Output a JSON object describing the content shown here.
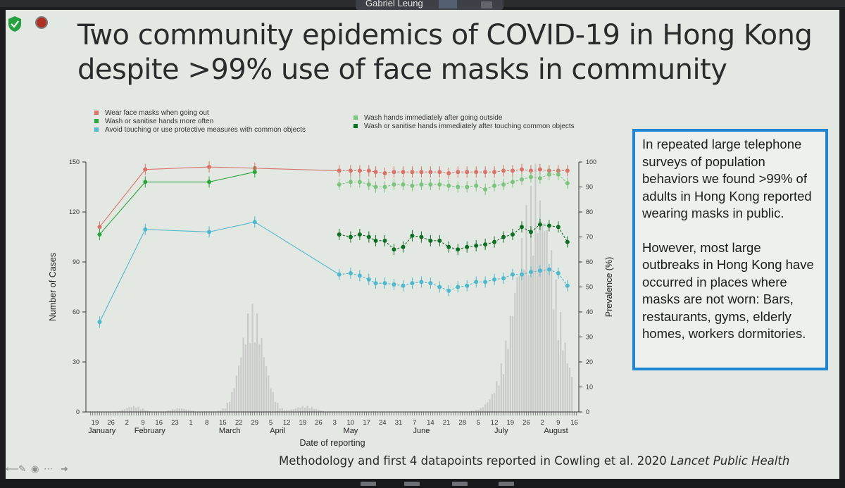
{
  "app": {
    "presenter_name": "Gabriel Leung"
  },
  "slide": {
    "title_line1": "Two community epidemics of COVID-19 in Hong Kong",
    "title_line2": "despite >99%  use of face masks in community",
    "box_paragraph1": "In repeated large telephone surveys of population behaviors we found >99% of adults in Hong Kong reported wearing masks in public.",
    "box_paragraph2": "However, most large outbreaks in Hong Kong have occurred in places where masks are not worn: Bars, restaurants, gyms, elderly homes, workers dormitories.",
    "footer_text": "Methodology and first 4 datapoints reported in Cowling et al. 2020 ",
    "footer_journal": "Lancet Public Health"
  },
  "chart_data": {
    "type": "line",
    "xlabel": "Date of reporting",
    "ylabel_left": "Number of Cases",
    "ylabel_right": "Prevalence (%)",
    "ylim_left": [
      0,
      150
    ],
    "ylim_right": [
      0,
      100
    ],
    "left_ticks": [
      0,
      30,
      60,
      90,
      120,
      150
    ],
    "right_ticks": [
      0,
      10,
      20,
      30,
      40,
      50,
      60,
      70,
      80,
      90,
      100
    ],
    "x_day_labels": [
      "19",
      "26",
      "2",
      "9",
      "16",
      "23",
      "1",
      "8",
      "15",
      "22",
      "29",
      "5",
      "12",
      "19",
      "26",
      "3",
      "10",
      "17",
      "24",
      "31",
      "7",
      "14",
      "21",
      "28",
      "5",
      "12",
      "19",
      "26",
      "2",
      "9",
      "16"
    ],
    "months": [
      {
        "label": "January",
        "date": "2020-01-22"
      },
      {
        "label": "February",
        "date": "2020-02-12"
      },
      {
        "label": "March",
        "date": "2020-03-18"
      },
      {
        "label": "April",
        "date": "2020-04-08"
      },
      {
        "label": "May",
        "date": "2020-05-10"
      },
      {
        "label": "June",
        "date": "2020-06-10"
      },
      {
        "label": "July",
        "date": "2020-07-15"
      },
      {
        "label": "August",
        "date": "2020-08-08"
      }
    ],
    "series": [
      {
        "name": "Wear face masks when going out",
        "color": "#d8736a",
        "x": [
          "2020-01-21",
          "2020-02-10",
          "2020-03-09",
          "2020-03-29",
          "2020-05-05",
          "2020-05-10",
          "2020-05-14",
          "2020-05-18",
          "2020-05-21",
          "2020-05-25",
          "2020-05-29",
          "2020-06-02",
          "2020-06-06",
          "2020-06-10",
          "2020-06-14",
          "2020-06-18",
          "2020-06-22",
          "2020-06-26",
          "2020-06-30",
          "2020-07-04",
          "2020-07-08",
          "2020-07-12",
          "2020-07-16",
          "2020-07-20",
          "2020-07-24",
          "2020-07-28",
          "2020-08-01",
          "2020-08-05",
          "2020-08-09",
          "2020-08-13"
        ],
        "y": [
          74,
          97,
          98,
          97.5,
          96.5,
          96.5,
          96.5,
          96.5,
          96,
          95.5,
          96,
          96,
          96,
          96,
          96,
          96,
          95.5,
          96,
          96,
          96,
          96,
          96,
          96.5,
          96.5,
          97,
          96.5,
          97,
          96.5,
          96.5,
          96.5
        ]
      },
      {
        "name": "Wash hands immediately after going outside",
        "color": "#7bc47d",
        "x": [
          "2020-05-05",
          "2020-05-10",
          "2020-05-14",
          "2020-05-18",
          "2020-05-21",
          "2020-05-25",
          "2020-05-29",
          "2020-06-02",
          "2020-06-06",
          "2020-06-10",
          "2020-06-14",
          "2020-06-18",
          "2020-06-22",
          "2020-06-26",
          "2020-06-30",
          "2020-07-04",
          "2020-07-08",
          "2020-07-12",
          "2020-07-16",
          "2020-07-20",
          "2020-07-24",
          "2020-07-28",
          "2020-08-01",
          "2020-08-05",
          "2020-08-09",
          "2020-08-13"
        ],
        "y": [
          91,
          92,
          92,
          91,
          90,
          90,
          91,
          91,
          90.5,
          91,
          91,
          91,
          90.5,
          90,
          90,
          90.5,
          89,
          90.5,
          91,
          92,
          93,
          94,
          93.5,
          95,
          95,
          91.5
        ]
      },
      {
        "name": "Wash or sanitise hands more often",
        "color": "#2aa63c",
        "x": [
          "2020-01-21",
          "2020-02-10",
          "2020-03-09",
          "2020-03-29"
        ],
        "y": [
          71,
          92,
          92,
          96
        ]
      },
      {
        "name": "Wash or sanitise hands immediately after touching common objects",
        "color": "#0e6e25",
        "x": [
          "2020-05-05",
          "2020-05-10",
          "2020-05-14",
          "2020-05-18",
          "2020-05-21",
          "2020-05-25",
          "2020-05-29",
          "2020-06-02",
          "2020-06-06",
          "2020-06-10",
          "2020-06-14",
          "2020-06-18",
          "2020-06-22",
          "2020-06-26",
          "2020-06-30",
          "2020-07-04",
          "2020-07-08",
          "2020-07-12",
          "2020-07-16",
          "2020-07-20",
          "2020-07-24",
          "2020-07-28",
          "2020-08-01",
          "2020-08-05",
          "2020-08-09",
          "2020-08-13"
        ],
        "y": [
          71,
          70,
          71,
          70,
          68.5,
          68.5,
          65,
          66,
          70.5,
          70,
          68.5,
          68.5,
          66,
          65,
          66,
          66.5,
          67,
          68,
          70,
          71,
          74,
          72,
          75,
          74.5,
          74,
          68
        ]
      },
      {
        "name": "Avoid touching or use protective measures with common objects",
        "color": "#4fb8cd",
        "x": [
          "2020-01-21",
          "2020-02-10",
          "2020-03-09",
          "2020-03-29",
          "2020-05-05",
          "2020-05-10",
          "2020-05-14",
          "2020-05-18",
          "2020-05-21",
          "2020-05-25",
          "2020-05-29",
          "2020-06-02",
          "2020-06-06",
          "2020-06-10",
          "2020-06-14",
          "2020-06-18",
          "2020-06-22",
          "2020-06-26",
          "2020-06-30",
          "2020-07-04",
          "2020-07-08",
          "2020-07-12",
          "2020-07-16",
          "2020-07-20",
          "2020-07-24",
          "2020-07-28",
          "2020-08-01",
          "2020-08-05",
          "2020-08-09",
          "2020-08-13"
        ],
        "y": [
          36,
          73,
          72,
          76,
          55,
          55.5,
          54.5,
          53,
          51.5,
          51.5,
          51,
          50.5,
          51.5,
          52,
          51.5,
          50,
          48.5,
          50,
          50.5,
          52,
          52,
          53,
          53.5,
          55,
          55,
          56,
          56.5,
          57,
          55.5,
          50.5
        ]
      }
    ],
    "cases": {
      "name": "Number of Cases",
      "color": "#c9cbc8",
      "peaks": [
        {
          "date": "2020-02-05",
          "value": 3
        },
        {
          "date": "2020-02-25",
          "value": 2
        },
        {
          "date": "2020-03-28",
          "value": 65
        },
        {
          "date": "2020-04-20",
          "value": 3
        },
        {
          "date": "2020-07-30",
          "value": 149
        }
      ]
    },
    "legend": "top",
    "grid": false
  }
}
